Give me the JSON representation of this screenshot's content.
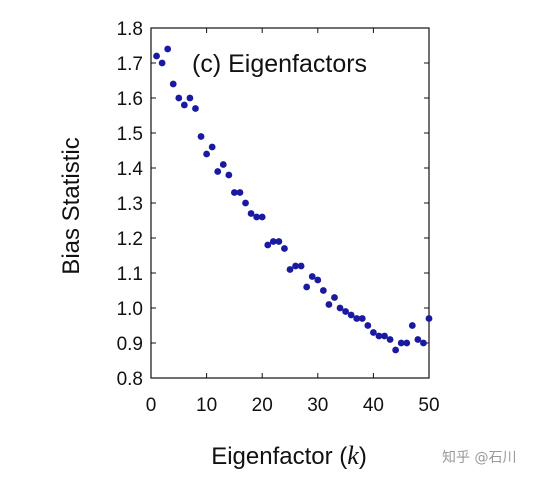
{
  "chart_data": {
    "type": "scatter",
    "title": "(c) Eigenfactors",
    "xlabel": "Eigenfactor (",
    "xlabel_var": "k",
    "xlabel_close": ")",
    "ylabel": "Bias Statistic",
    "xlim": [
      0,
      50
    ],
    "ylim": [
      0.8,
      1.8
    ],
    "xticks": [
      0,
      10,
      20,
      30,
      40,
      50
    ],
    "xtick_labels": [
      "0",
      "10",
      "20",
      "30",
      "40",
      "50"
    ],
    "yticks": [
      0.8,
      0.9,
      1.0,
      1.1,
      1.2,
      1.3,
      1.4,
      1.5,
      1.6,
      1.7,
      1.8
    ],
    "ytick_labels": [
      "0.8",
      "0.9",
      "1.0",
      "1.1",
      "1.2",
      "1.3",
      "1.4",
      "1.5",
      "1.6",
      "1.7",
      "1.8"
    ],
    "grid": false,
    "marker_color": "#1a1aa0",
    "series": [
      {
        "x": [
          1,
          2,
          3,
          4,
          5,
          6,
          7,
          8,
          9,
          10,
          11,
          12,
          13,
          14,
          15,
          16,
          17,
          18,
          19,
          20,
          21,
          22,
          23,
          24,
          25,
          26,
          27,
          28,
          29,
          30,
          31,
          32,
          33,
          34,
          35,
          36,
          37,
          38,
          39,
          40,
          41,
          42,
          43,
          44,
          45,
          46,
          47,
          48,
          49,
          50
        ],
        "y": [
          1.72,
          1.7,
          1.74,
          1.64,
          1.6,
          1.58,
          1.6,
          1.57,
          1.49,
          1.44,
          1.46,
          1.39,
          1.41,
          1.38,
          1.33,
          1.33,
          1.3,
          1.27,
          1.26,
          1.26,
          1.18,
          1.19,
          1.19,
          1.17,
          1.11,
          1.12,
          1.12,
          1.06,
          1.09,
          1.08,
          1.05,
          1.01,
          1.03,
          1.0,
          0.99,
          0.98,
          0.97,
          0.97,
          0.95,
          0.93,
          0.92,
          0.92,
          0.91,
          0.88,
          0.9,
          0.9,
          0.95,
          0.91,
          0.9,
          0.97
        ]
      }
    ]
  },
  "watermark": {
    "text": "知乎 @石川"
  }
}
